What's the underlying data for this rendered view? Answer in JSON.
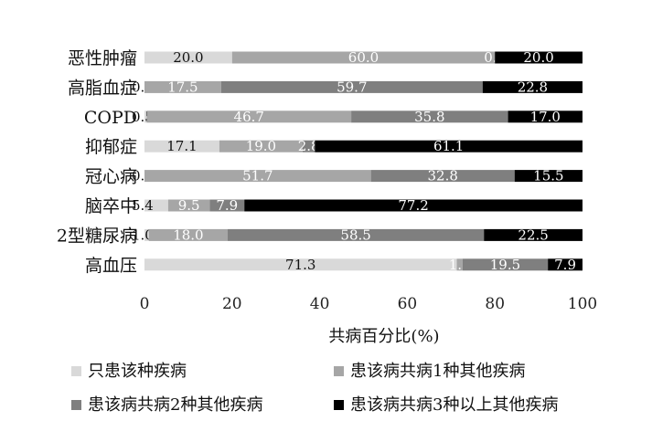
{
  "chart_data": {
    "type": "bar",
    "orientation": "horizontal",
    "stacked": true,
    "categories": [
      "恶性肿瘤",
      "高脂血症",
      "COPD",
      "抑郁症",
      "冠心病",
      "脑卒中",
      "2型糖尿病",
      "高血压"
    ],
    "series": [
      {
        "name": "只患该种疾病",
        "color": "#d9d9d9",
        "label_color": "#111111",
        "values": [
          20.0,
          0.0,
          0.5,
          17.1,
          0.0,
          5.4,
          1.0,
          71.3
        ]
      },
      {
        "name": "患该病共病1种其他疾病",
        "color": "#a6a6a6",
        "label_color": "#ffffff",
        "values": [
          60.0,
          17.5,
          46.7,
          19.0,
          51.7,
          9.5,
          18.0,
          1.3
        ]
      },
      {
        "name": "患该病共病2种其他疾病",
        "color": "#7f7f7f",
        "label_color": "#ffffff",
        "values": [
          0.0,
          59.7,
          35.8,
          2.8,
          32.8,
          7.9,
          58.5,
          19.5
        ]
      },
      {
        "name": "患该病共病3种以上其他疾病",
        "color": "#000000",
        "label_color": "#ffffff",
        "values": [
          20.0,
          22.8,
          17.0,
          61.1,
          15.5,
          77.2,
          22.5,
          7.9
        ]
      }
    ],
    "data_labels": [
      [
        "20.0",
        "60.0",
        "0.0",
        "20.0"
      ],
      [
        "0.0",
        "17.5",
        "59.7",
        "22.8"
      ],
      [
        "0.5",
        "46.7",
        "35.8",
        "17.0"
      ],
      [
        "17.1",
        "19.0",
        "2.8",
        "61.1"
      ],
      [
        "0.0",
        "51.7",
        "32.8",
        "15.5"
      ],
      [
        "5.4",
        "9.5",
        "7.9",
        "77.2"
      ],
      [
        "1.0",
        "18.0",
        "58.5",
        "22.5"
      ],
      [
        "71.3",
        "1.3",
        "19.5",
        "7.9"
      ]
    ],
    "xlim": [
      0,
      100
    ],
    "xticks": [
      "0",
      "20",
      "40",
      "60",
      "80",
      "100"
    ],
    "xlabel": "共病百分比(%)",
    "ylabel": "",
    "title": "",
    "grid": false,
    "legend_position": "bottom"
  }
}
